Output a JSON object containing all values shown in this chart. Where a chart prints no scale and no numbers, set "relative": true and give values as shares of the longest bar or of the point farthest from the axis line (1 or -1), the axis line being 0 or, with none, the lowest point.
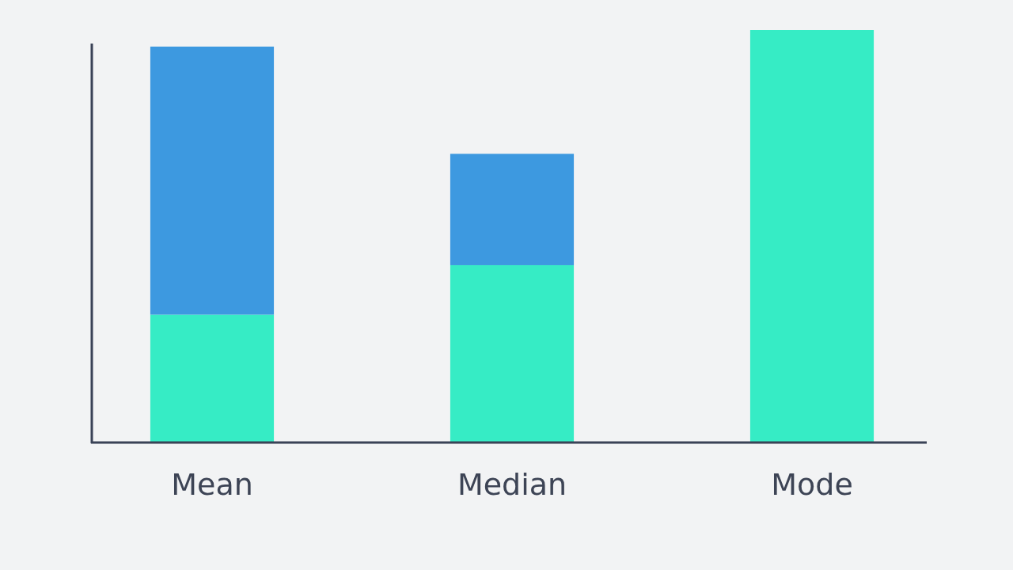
{
  "chart_data": {
    "type": "bar",
    "stacked": true,
    "relative": true,
    "categories": [
      "Mean",
      "Median",
      "Mode"
    ],
    "series": [
      {
        "color": "#36ecc5",
        "values": [
          0.31,
          0.43,
          1.0
        ]
      },
      {
        "color": "#3d99e0",
        "values": [
          0.65,
          0.27,
          0
        ]
      }
    ]
  }
}
